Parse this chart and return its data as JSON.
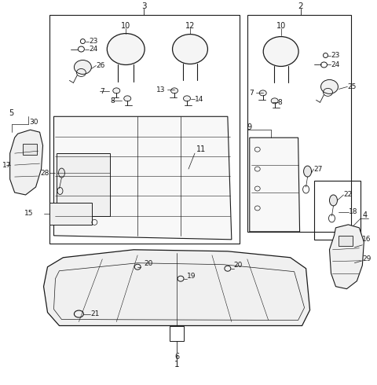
{
  "bg_color": "#ffffff",
  "line_color": "#1a1a1a",
  "fig_width": 4.8,
  "fig_height": 4.9,
  "dpi": 100
}
